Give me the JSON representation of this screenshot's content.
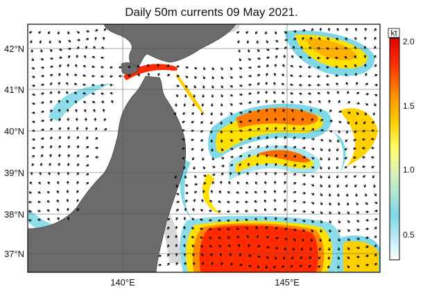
{
  "title": "Daily 50m currents 09 May 2021.",
  "map": {
    "lat_labels": [
      "42°N",
      "41°N",
      "40°N",
      "39°N",
      "38°N",
      "37°N"
    ],
    "lon_labels": [
      "140°E",
      "145°E"
    ],
    "lat_range": [
      36.5,
      42.6
    ],
    "lon_range": [
      137.3,
      147.7
    ],
    "land_color": "#6b6b6b",
    "shelf_color": "#d8d8d8",
    "vector_color": "#000000"
  },
  "colorbar": {
    "unit": "kt",
    "tick_labels": [
      "2.0",
      "1.5",
      "1.0",
      "0.5"
    ],
    "range": [
      0.2,
      2.0
    ],
    "colors": [
      "#ffffff",
      "#a8e6f0",
      "#6fd3e6",
      "#ffff80",
      "#ffd400",
      "#ff8a00",
      "#ff3000",
      "#e00000"
    ]
  }
}
